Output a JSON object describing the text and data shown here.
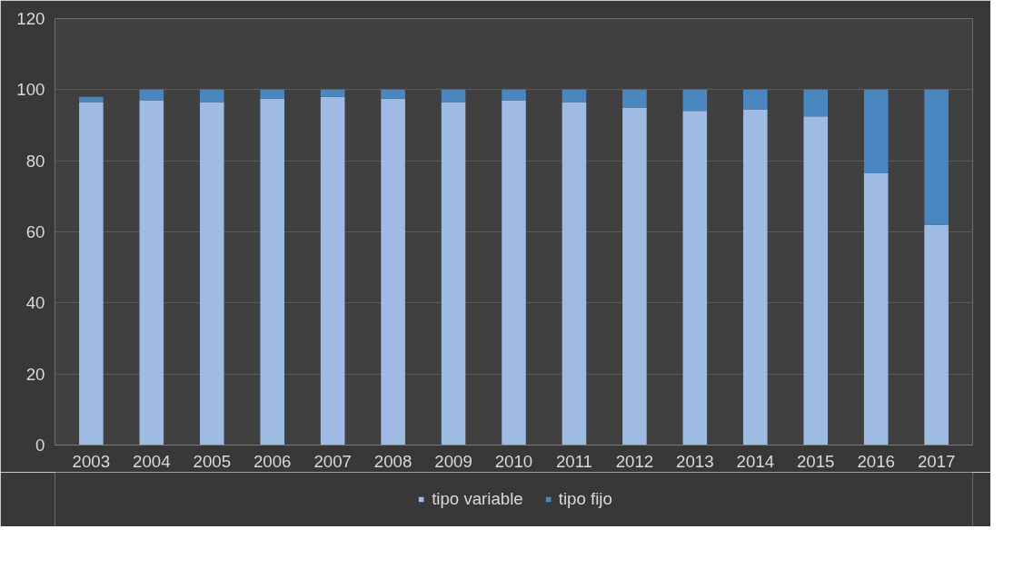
{
  "chart_data": {
    "type": "bar",
    "stacked": true,
    "categories": [
      "2003",
      "2004",
      "2005",
      "2006",
      "2007",
      "2008",
      "2009",
      "2010",
      "2011",
      "2012",
      "2013",
      "2014",
      "2015",
      "2016",
      "2017"
    ],
    "series": [
      {
        "name": "tipo variable",
        "color": "#9dbbe3",
        "values": [
          96.5,
          97,
          96.5,
          97.5,
          98,
          97.5,
          96.5,
          97,
          96.5,
          95,
          94,
          94.5,
          92.5,
          76.5,
          62
        ]
      },
      {
        "name": "tipo fijo",
        "color": "#4a86c0",
        "values": [
          1.5,
          3,
          3.5,
          2.5,
          2,
          2.5,
          3.5,
          3,
          3.5,
          5,
          6,
          5.5,
          7.5,
          23.5,
          38
        ]
      }
    ],
    "ylim": [
      0,
      120
    ],
    "yticks": [
      0,
      20,
      40,
      60,
      80,
      100,
      120
    ],
    "grid": "y",
    "legend": "bottom"
  }
}
